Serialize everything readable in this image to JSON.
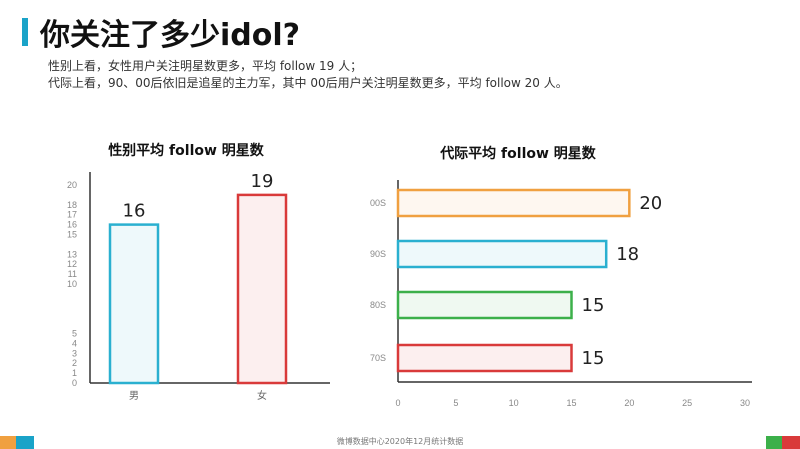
{
  "header": {
    "title": "你关注了多少idol?",
    "desc_line1": "性别上看，女性用户关注明星数更多，平均 follow 19 人；",
    "desc_line2": "代际上看，90、00后依旧是追星的主力军，其中 00后用户关注明星数更多，平均 follow 20 人。"
  },
  "footer": {
    "source": "微博数据中心2020年12月统计数据"
  },
  "colors": {
    "accent": "#1aa3c8",
    "orange": "#f0a040",
    "blue": "#2ab0d0",
    "green": "#3cb04a",
    "red": "#d93a3a"
  },
  "chart_data": [
    {
      "type": "bar",
      "title": "性别平均 follow 明星数",
      "categories": [
        "男",
        "女"
      ],
      "values": [
        16,
        19
      ],
      "ylim": [
        0,
        20
      ],
      "yticks": [
        0,
        1,
        2,
        3,
        4,
        5,
        10,
        11,
        12,
        13,
        15,
        16,
        17,
        18,
        20
      ],
      "colors": [
        "#2ab0d0",
        "#d93a3a"
      ]
    },
    {
      "type": "bar",
      "orientation": "horizontal",
      "title": "代际平均 follow 明星数",
      "categories": [
        "00S",
        "90S",
        "80S",
        "70S"
      ],
      "values": [
        20,
        18,
        15,
        15
      ],
      "xlim": [
        0,
        30
      ],
      "xticks": [
        0,
        5,
        10,
        15,
        20,
        25,
        30
      ],
      "colors": [
        "#f0a040",
        "#2ab0d0",
        "#3cb04a",
        "#d93a3a"
      ]
    }
  ]
}
